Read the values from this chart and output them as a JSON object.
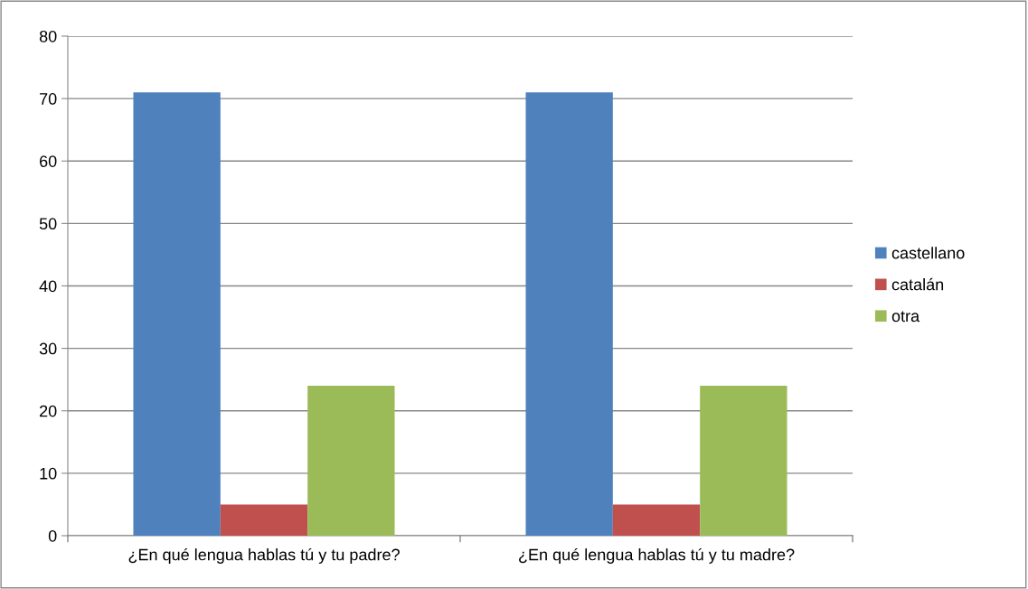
{
  "chart_data": {
    "type": "bar",
    "categories": [
      "¿En qué lengua hablas tú y tu padre?",
      "¿En qué lengua hablas tú y tu madre?"
    ],
    "series": [
      {
        "name": "castellano",
        "color": "#4f81bd",
        "values": [
          71,
          71
        ]
      },
      {
        "name": "catalán",
        "color": "#c0504d",
        "values": [
          5,
          5
        ]
      },
      {
        "name": "otra",
        "color": "#9bbb59",
        "values": [
          24,
          24
        ]
      }
    ],
    "ylim": [
      0,
      80
    ],
    "yticks": [
      0,
      10,
      20,
      30,
      40,
      50,
      60,
      70,
      80
    ],
    "grid": "y",
    "legend": "right"
  }
}
